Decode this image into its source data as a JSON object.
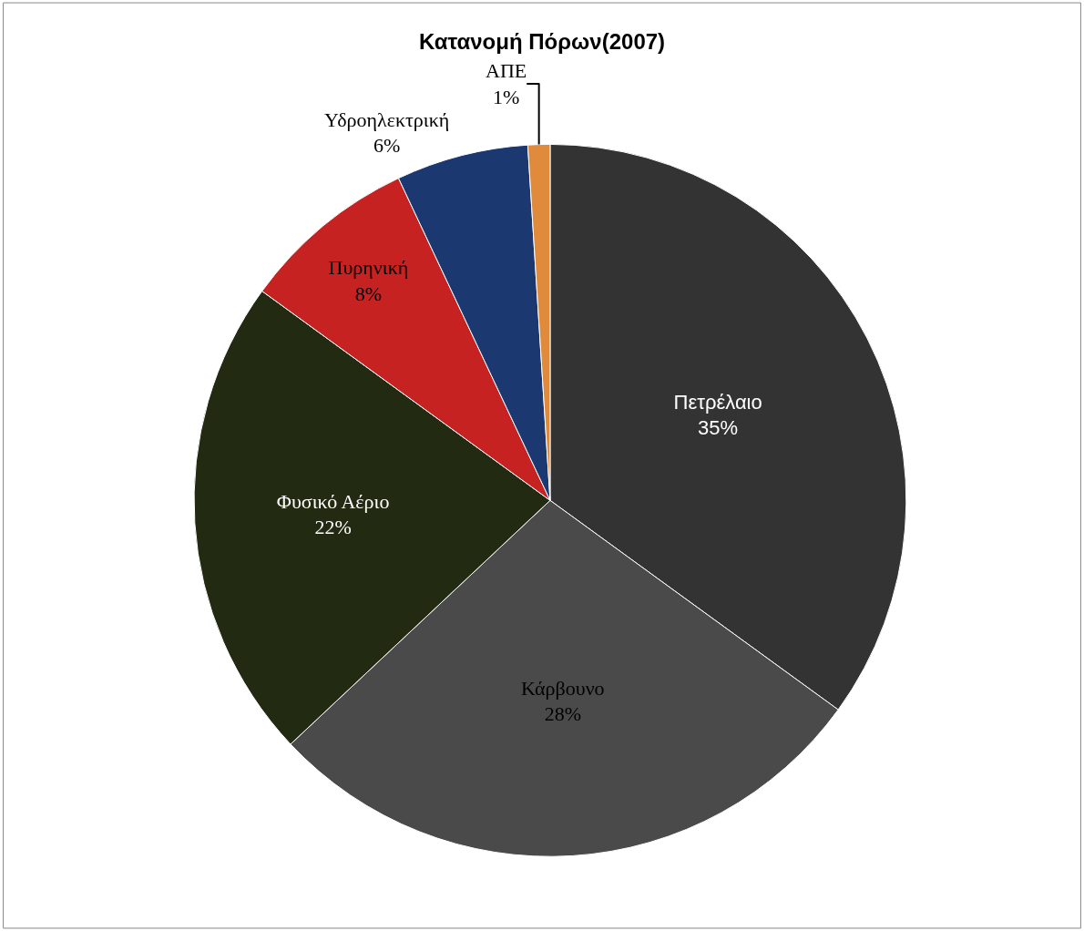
{
  "chart_data": {
    "type": "pie",
    "title": "Κατανομή Πόρων(2007)",
    "categories": [
      "Πετρέλαιο",
      "Κάρβουνο",
      "Φυσικό Αέριο",
      "Πυρηνική",
      "Υδροηλεκτρική",
      "ΑΠΕ"
    ],
    "values": [
      35,
      28,
      22,
      8,
      6,
      1
    ],
    "value_labels": [
      "35%",
      "28%",
      "22%",
      "8%",
      "6%",
      "1%"
    ],
    "colors": [
      "#333333",
      "#4a4a4a",
      "#222a12",
      "#c62222",
      "#1c3870",
      "#e08a3c"
    ],
    "legend": false
  }
}
